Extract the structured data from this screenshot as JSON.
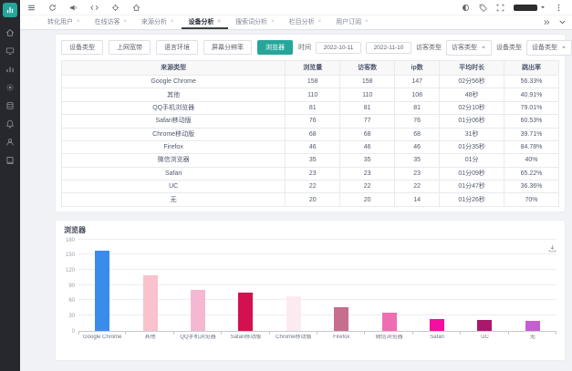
{
  "app": {
    "accent_color": "#26a69a",
    "sidebar_bg": "#27282e"
  },
  "sidebar": {
    "logo_icon": "bar-chart-logo-icon",
    "icons": [
      "home-icon",
      "monitor-icon",
      "bar-chart-icon",
      "gear-icon",
      "database-icon",
      "bell-icon",
      "user-icon",
      "book-icon"
    ]
  },
  "topbar": {
    "left_icons": [
      "menu-icon",
      "refresh-icon",
      "announcement-icon",
      "code-icon",
      "crosshair-icon",
      "home-outline-icon"
    ],
    "right_icons": [
      "theme-icon",
      "tag-icon",
      "fullscreen-icon"
    ]
  },
  "tabbar": {
    "tabs": [
      {
        "label": "转化用户"
      },
      {
        "label": "在线访客"
      },
      {
        "label": "来源分析"
      },
      {
        "label": "设备分析"
      },
      {
        "label": "搜索词分析"
      },
      {
        "label": "栏目分析"
      },
      {
        "label": "用户订阅"
      }
    ],
    "active_index": 3
  },
  "filters": {
    "buttons": [
      "设备类型",
      "上网宽带",
      "语言环境",
      "屏幕分辨率",
      "浏览器"
    ],
    "active_index": 4,
    "time_label": "时间",
    "date_start": "2022-10-11",
    "date_end": "2022-11-10",
    "visitor_type_label": "访客类型",
    "visitor_type_value": "访客类型",
    "device_type_label": "设备类型",
    "device_type_value": "设备类型",
    "export_label": "导出"
  },
  "table": {
    "columns": [
      "来源类型",
      "浏览量",
      "访客数",
      "ip数",
      "平均时长",
      "跳出率"
    ],
    "col_widths": [
      "45%",
      "11%",
      "11%",
      "9%",
      "13%",
      "11%"
    ],
    "rows": [
      [
        "Google Chrome",
        "158",
        "158",
        "147",
        "02分56秒",
        "56.33%"
      ],
      [
        "其他",
        "110",
        "110",
        "108",
        "48秒",
        "40.91%"
      ],
      [
        "QQ手机浏览器",
        "81",
        "81",
        "81",
        "02分10秒",
        "79.01%"
      ],
      [
        "Safari移动版",
        "76",
        "77",
        "76",
        "01分06秒",
        "60.53%"
      ],
      [
        "Chrome移动版",
        "68",
        "68",
        "68",
        "31秒",
        "39.71%"
      ],
      [
        "Firefox",
        "46",
        "46",
        "46",
        "01分35秒",
        "84.78%"
      ],
      [
        "微信浏览器",
        "35",
        "35",
        "35",
        "01分",
        "40%"
      ],
      [
        "Safari",
        "23",
        "23",
        "23",
        "01分09秒",
        "65.22%"
      ],
      [
        "UC",
        "22",
        "22",
        "22",
        "01分47秒",
        "36.36%"
      ],
      [
        "无",
        "20",
        "20",
        "14",
        "01分26秒",
        "70%"
      ]
    ]
  },
  "chart_data": {
    "type": "bar",
    "title": "浏览器",
    "categories": [
      "Google Chrome",
      "其他",
      "QQ手机浏览器",
      "Safari移动版",
      "Chrome移动版",
      "Firefox",
      "微信浏览器",
      "Safari",
      "UC",
      "无"
    ],
    "values": [
      158,
      110,
      81,
      76,
      68,
      46,
      35,
      23,
      22,
      20
    ],
    "colors": [
      "#3a8ceb",
      "#f9c2cc",
      "#f5b8d2",
      "#d2114e",
      "#fdeaf1",
      "#c76d8d",
      "#ee6fb1",
      "#f50f9e",
      "#a8186b",
      "#c45fd0"
    ],
    "xlabel": "",
    "ylabel": "",
    "ylim": [
      0,
      180
    ],
    "ytick_interval": 30,
    "grid": true,
    "legend": false,
    "toolbox_icon": "save-image-icon"
  }
}
